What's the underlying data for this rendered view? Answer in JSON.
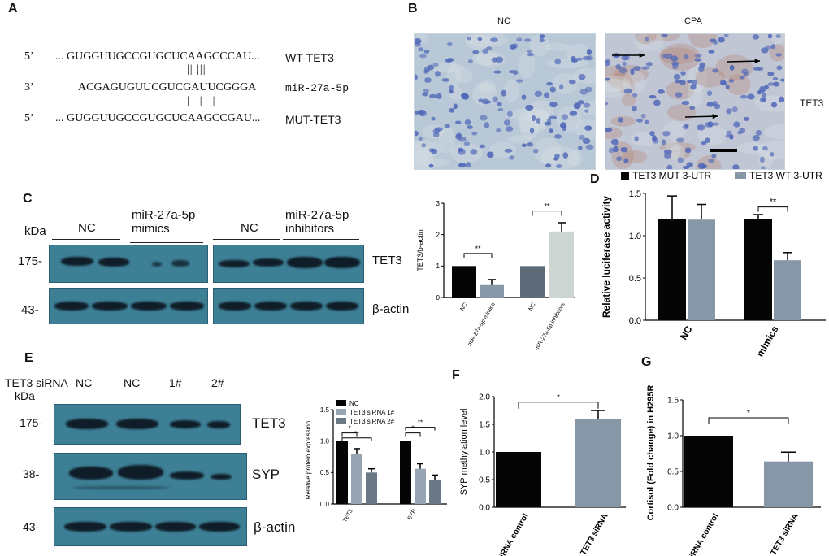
{
  "panelA": {
    "letter": "A",
    "row1": {
      "prime": "5’",
      "seq": "... GUGGUUGCCGUGCUCAAGCCCAU...",
      "label": "WT-TET3"
    },
    "bars1": "|| |||",
    "row2": {
      "prime": "3’",
      "seq": "ACGAGUGUUCGUCGAUUCGGGA",
      "label": "miR-27a-5p"
    },
    "bars2": "|  |  |",
    "row3": {
      "prime": "5’",
      "seq": "... GUGGUUGCCGUGCUCAAGCCGAU...",
      "label": "MUT-TET3"
    }
  },
  "panelB": {
    "letter": "B",
    "left_title": "NC",
    "right_title": "CPA",
    "side_label": "TET3",
    "colors": {
      "bg": "#b7c7d8",
      "nuclei": "#4f67b8",
      "brown": "#b58878"
    }
  },
  "panelC": {
    "letter": "C",
    "kda": "kDa",
    "groups": [
      "NC",
      "miR-27a-5p mimics",
      "NC",
      "miR-27a-5p inhibitors"
    ],
    "markers": [
      "175-",
      "43-"
    ],
    "proteins": [
      "TET3",
      "β-actin"
    ],
    "blot_color": "#3d7f95"
  },
  "panelD": {
    "letter": "D",
    "legend": [
      "TET3 MUT 3-UTR",
      "TET3 WT 3-UTR"
    ]
  },
  "panelE": {
    "letter": "E",
    "header": "TET3 siRNA",
    "lanes": [
      "NC",
      "NC",
      "1#",
      "2#"
    ],
    "kda": "kDa",
    "markers": [
      "175-",
      "38-",
      "43-"
    ],
    "proteins": [
      "TET3",
      "SYP",
      "β-actin"
    ]
  },
  "panelF": {
    "letter": "F"
  },
  "panelG": {
    "letter": "G"
  },
  "chart_data": [
    {
      "id": "C-quant",
      "type": "bar",
      "ylabel": "TET3/b-actin",
      "ylim": [
        0,
        3
      ],
      "yticks": [
        0,
        1,
        2,
        3
      ],
      "categories": [
        "NC",
        "miR-27a-5p mimics",
        "NC",
        "miR-27a-5p inhibitors"
      ],
      "values": [
        1.0,
        0.42,
        1.0,
        2.1
      ],
      "errors": [
        0,
        0.15,
        0,
        0.28
      ],
      "colors": [
        "#050505",
        "#8797a8",
        "#5d6b79",
        "#cdd5d3"
      ],
      "significance": [
        {
          "from": 0,
          "to": 1,
          "label": "**"
        },
        {
          "from": 2,
          "to": 3,
          "label": "**"
        }
      ]
    },
    {
      "id": "D",
      "type": "bar",
      "ylabel": "Relative luciferase activity",
      "ylim": [
        0,
        1.5
      ],
      "yticks": [
        "0.0",
        "0.5",
        "1.0",
        "1.5"
      ],
      "categories": [
        "NC",
        "miR-27a mimics"
      ],
      "series": [
        {
          "name": "TET3 MUT 3-UTR",
          "values": [
            1.2,
            1.2
          ],
          "errors": [
            0.27,
            0.05
          ],
          "color": "#050505"
        },
        {
          "name": "TET3 WT 3-UTR",
          "values": [
            1.19,
            0.71
          ],
          "errors": [
            0.18,
            0.09
          ],
          "color": "#8797a8"
        }
      ],
      "significance": [
        {
          "group": 1,
          "label": "**"
        }
      ]
    },
    {
      "id": "E-quant",
      "type": "bar",
      "ylabel": "Relative protein expression",
      "ylim": [
        0,
        1.5
      ],
      "yticks": [
        "0.0",
        "0.5",
        "1.0",
        "1.5"
      ],
      "categories": [
        "TET3",
        "SYP"
      ],
      "series": [
        {
          "name": "NC",
          "values": [
            1.0,
            1.0
          ],
          "errors": [
            0,
            0
          ],
          "color": "#050505"
        },
        {
          "name": "TET3 siRNA 1#",
          "values": [
            0.8,
            0.56
          ],
          "errors": [
            0.08,
            0.08
          ],
          "color": "#97a4b1"
        },
        {
          "name": "TET3 siRNA 2#",
          "values": [
            0.5,
            0.38
          ],
          "errors": [
            0.06,
            0.08
          ],
          "color": "#6a7885"
        }
      ],
      "significance": [
        "*",
        "**",
        "*",
        "**"
      ]
    },
    {
      "id": "F",
      "type": "bar",
      "ylabel": "SYP methylation level",
      "ylim": [
        0,
        2.0
      ],
      "yticks": [
        "0.0",
        "0.5",
        "1.0",
        "1.5",
        "2.0"
      ],
      "categories": [
        "siRNA control",
        "TET3 siRNA"
      ],
      "values": [
        1.0,
        1.59
      ],
      "errors": [
        0,
        0.16
      ],
      "colors": [
        "#050505",
        "#8797a8"
      ],
      "significance": [
        {
          "from": 0,
          "to": 1,
          "label": "*"
        }
      ]
    },
    {
      "id": "G",
      "type": "bar",
      "ylabel": "Cortisol (Fold change) in H295R",
      "ylim": [
        0,
        1.5
      ],
      "yticks": [
        "0.0",
        "0.5",
        "1.0",
        "1.5"
      ],
      "categories": [
        "siRNA control",
        "TET3 siRNA"
      ],
      "values": [
        1.0,
        0.64
      ],
      "errors": [
        0,
        0.13
      ],
      "colors": [
        "#050505",
        "#8797a8"
      ],
      "significance": [
        {
          "from": 0,
          "to": 1,
          "label": "*"
        }
      ]
    }
  ]
}
